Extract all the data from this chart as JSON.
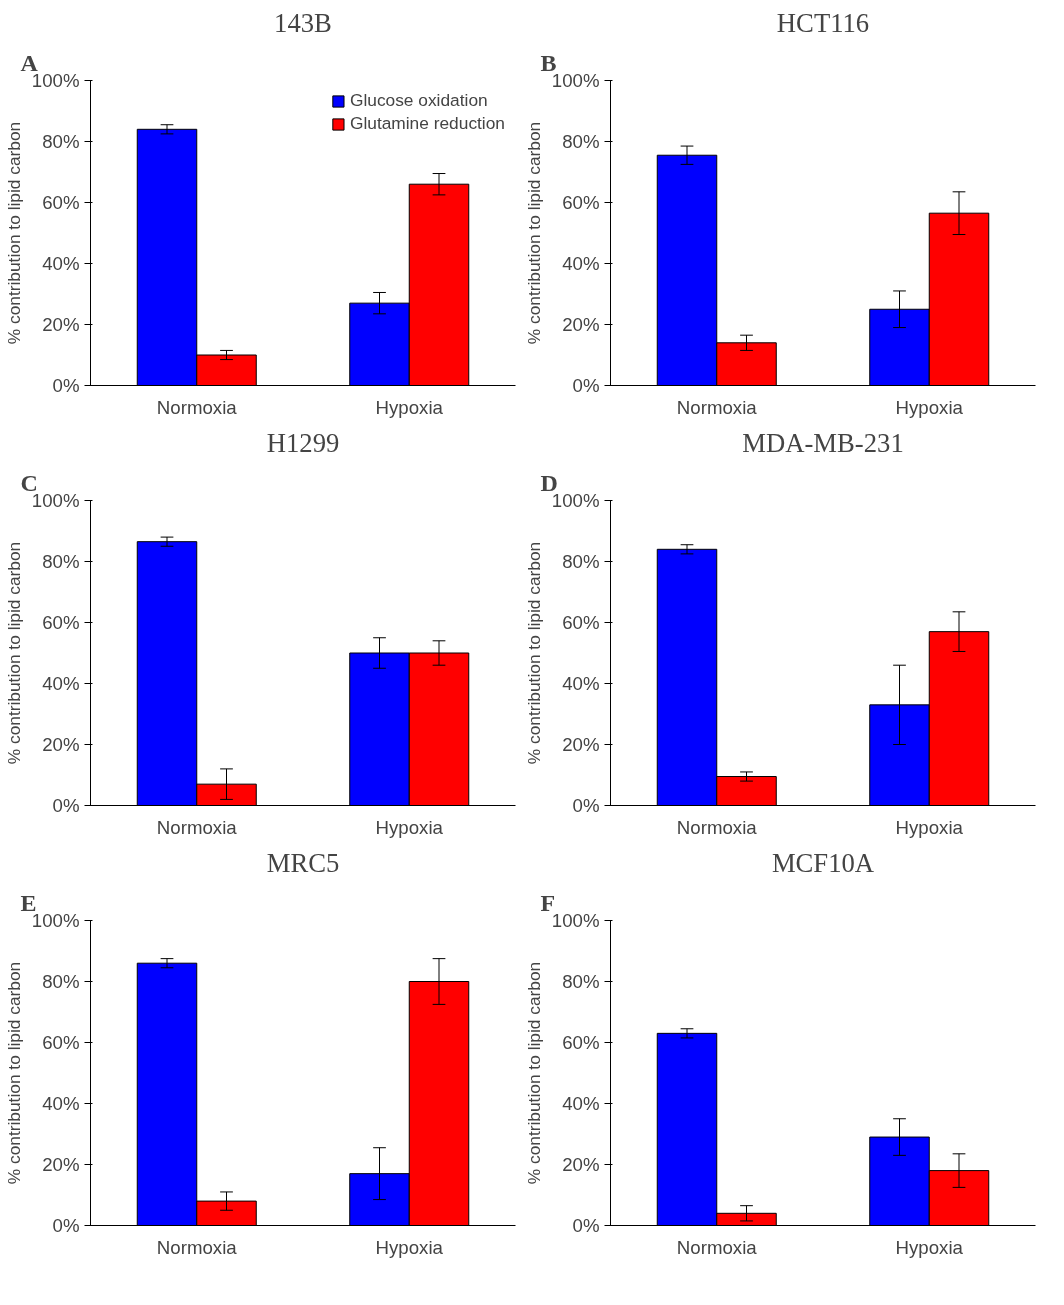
{
  "chart_data": [
    {
      "type": "bar",
      "title": "143B",
      "annotations": [
        "A"
      ],
      "ylabel": "% contribution to lipid carbon",
      "categories": [
        "Normoxia",
        "Hypoxia"
      ],
      "ylim": [
        0,
        100
      ],
      "yticks": [
        {
          "value": 0,
          "label": "0%"
        },
        {
          "value": 20,
          "label": "20%"
        },
        {
          "value": 40,
          "label": "40%"
        },
        {
          "value": 60,
          "label": "60%"
        },
        {
          "value": 80,
          "label": "80%"
        },
        {
          "value": 100,
          "label": "100%"
        }
      ],
      "grid": false,
      "legend": "top right",
      "series": [
        {
          "name": "Glucose oxidation",
          "color": "#0000ff",
          "values": [
            84,
            27
          ],
          "errors": [
            1.5,
            3.5
          ]
        },
        {
          "name": "Glutamine reduction",
          "color": "#ff0000",
          "values": [
            10,
            66
          ],
          "errors": [
            1.5,
            3.5
          ]
        }
      ]
    },
    {
      "type": "bar",
      "title": "HCT116",
      "annotations": [
        "B"
      ],
      "ylabel": "% contribution to lipid carbon",
      "categories": [
        "Normoxia",
        "Hypoxia"
      ],
      "ylim": [
        0,
        100
      ],
      "yticks": [
        {
          "value": 0,
          "label": "0%"
        },
        {
          "value": 20,
          "label": "20%"
        },
        {
          "value": 40,
          "label": "40%"
        },
        {
          "value": 60,
          "label": "60%"
        },
        {
          "value": 80,
          "label": "80%"
        },
        {
          "value": 100,
          "label": "100%"
        }
      ],
      "grid": false,
      "series": [
        {
          "color": "#0000ff",
          "values": [
            75.5,
            25
          ],
          "errors": [
            3,
            6
          ]
        },
        {
          "color": "#ff0000",
          "values": [
            14,
            56.5
          ],
          "errors": [
            2.5,
            7
          ]
        }
      ]
    },
    {
      "type": "bar",
      "title": "H1299",
      "annotations": [
        "C"
      ],
      "ylabel": "% contribution to lipid carbon",
      "categories": [
        "Normoxia",
        "Hypoxia"
      ],
      "ylim": [
        0,
        100
      ],
      "yticks": [
        {
          "value": 0,
          "label": "0%"
        },
        {
          "value": 20,
          "label": "20%"
        },
        {
          "value": 40,
          "label": "40%"
        },
        {
          "value": 60,
          "label": "60%"
        },
        {
          "value": 80,
          "label": "80%"
        },
        {
          "value": 100,
          "label": "100%"
        }
      ],
      "grid": false,
      "series": [
        {
          "color": "#0000ff",
          "values": [
            86.5,
            50
          ],
          "errors": [
            1.5,
            5
          ]
        },
        {
          "color": "#ff0000",
          "values": [
            7,
            50
          ],
          "errors": [
            5,
            4
          ]
        }
      ]
    },
    {
      "type": "bar",
      "title": "MDA-MB-231",
      "annotations": [
        "D"
      ],
      "ylabel": "% contribution to lipid carbon",
      "categories": [
        "Normoxia",
        "Hypoxia"
      ],
      "ylim": [
        0,
        100
      ],
      "yticks": [
        {
          "value": 0,
          "label": "0%"
        },
        {
          "value": 20,
          "label": "20%"
        },
        {
          "value": 40,
          "label": "40%"
        },
        {
          "value": 60,
          "label": "60%"
        },
        {
          "value": 80,
          "label": "80%"
        },
        {
          "value": 100,
          "label": "100%"
        }
      ],
      "grid": false,
      "series": [
        {
          "color": "#0000ff",
          "values": [
            84,
            33
          ],
          "errors": [
            1.5,
            13
          ]
        },
        {
          "color": "#ff0000",
          "values": [
            9.5,
            57
          ],
          "errors": [
            1.5,
            6.5
          ]
        }
      ]
    },
    {
      "type": "bar",
      "title": "MRC5",
      "annotations": [
        "E"
      ],
      "ylabel": "% contribution to lipid carbon",
      "categories": [
        "Normoxia",
        "Hypoxia"
      ],
      "ylim": [
        0,
        100
      ],
      "yticks": [
        {
          "value": 0,
          "label": "0%"
        },
        {
          "value": 20,
          "label": "20%"
        },
        {
          "value": 40,
          "label": "40%"
        },
        {
          "value": 60,
          "label": "60%"
        },
        {
          "value": 80,
          "label": "80%"
        },
        {
          "value": 100,
          "label": "100%"
        }
      ],
      "grid": false,
      "series": [
        {
          "color": "#0000ff",
          "values": [
            86,
            17
          ],
          "errors": [
            1.5,
            8.5
          ]
        },
        {
          "color": "#ff0000",
          "values": [
            8,
            80
          ],
          "errors": [
            3,
            7.5
          ]
        }
      ]
    },
    {
      "type": "bar",
      "title": "MCF10A",
      "annotations": [
        "F"
      ],
      "ylabel": "% contribution to lipid carbon",
      "categories": [
        "Normoxia",
        "Hypoxia"
      ],
      "ylim": [
        0,
        100
      ],
      "yticks": [
        {
          "value": 0,
          "label": "0%"
        },
        {
          "value": 20,
          "label": "20%"
        },
        {
          "value": 40,
          "label": "40%"
        },
        {
          "value": 60,
          "label": "60%"
        },
        {
          "value": 80,
          "label": "80%"
        },
        {
          "value": 100,
          "label": "100%"
        }
      ],
      "grid": false,
      "series": [
        {
          "color": "#0000ff",
          "values": [
            63,
            29
          ],
          "errors": [
            1.5,
            6
          ]
        },
        {
          "color": "#ff0000",
          "values": [
            4,
            18
          ],
          "errors": [
            2.5,
            5.5
          ]
        }
      ]
    }
  ]
}
